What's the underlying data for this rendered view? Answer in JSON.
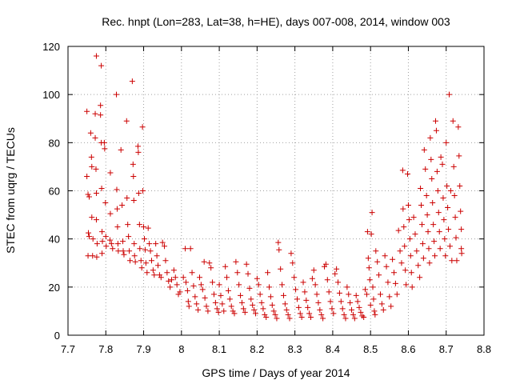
{
  "chart_data": {
    "type": "scatter",
    "title": "Rec. hnpt (Lon=283, Lat=38, h=HE), days 007-008, 2014, window 003",
    "xlabel": "GPS time / Days of year 2014",
    "ylabel": "STEC from uqrg / TECUs",
    "xlim": [
      7.7,
      8.8
    ],
    "ylim": [
      0,
      120
    ],
    "xticks": [
      "7.7",
      "7.8",
      "7.9",
      "8",
      "8.1",
      "8.2",
      "8.3",
      "8.4",
      "8.5",
      "8.6",
      "8.7",
      "8.8"
    ],
    "yticks": [
      "0",
      "20",
      "40",
      "60",
      "80",
      "100",
      "120"
    ],
    "grid": true,
    "marker": "plus",
    "color": "#cc0000",
    "points": [
      [
        7.75,
        93.0
      ],
      [
        7.75,
        66.0
      ],
      [
        7.753,
        58.5
      ],
      [
        7.756,
        57.5
      ],
      [
        7.754,
        42.5
      ],
      [
        7.756,
        41.0
      ],
      [
        7.753,
        33.0
      ],
      [
        7.76,
        84.0
      ],
      [
        7.762,
        74.0
      ],
      [
        7.763,
        70.0
      ],
      [
        7.763,
        49.0
      ],
      [
        7.766,
        40.0
      ],
      [
        7.765,
        33.0
      ],
      [
        7.775,
        116.0
      ],
      [
        7.772,
        92.0
      ],
      [
        7.772,
        82.0
      ],
      [
        7.774,
        69.0
      ],
      [
        7.775,
        59.0
      ],
      [
        7.775,
        48.0
      ],
      [
        7.777,
        38.0
      ],
      [
        7.776,
        32.5
      ],
      [
        7.788,
        112.0
      ],
      [
        7.786,
        95.5
      ],
      [
        7.786,
        91.5
      ],
      [
        7.788,
        80.0
      ],
      [
        7.789,
        61.0
      ],
      [
        7.79,
        43.0
      ],
      [
        7.791,
        39.0
      ],
      [
        7.79,
        34.0
      ],
      [
        7.796,
        80.0
      ],
      [
        7.797,
        77.5
      ],
      [
        7.799,
        55.0
      ],
      [
        7.8,
        41.0
      ],
      [
        7.801,
        37.0
      ],
      [
        7.812,
        67.5
      ],
      [
        7.812,
        50.5
      ],
      [
        7.811,
        39.5
      ],
      [
        7.815,
        38.0
      ],
      [
        7.818,
        36.0
      ],
      [
        7.828,
        100.0
      ],
      [
        7.829,
        60.5
      ],
      [
        7.83,
        52.5
      ],
      [
        7.831,
        45.0
      ],
      [
        7.832,
        38.0
      ],
      [
        7.833,
        35.0
      ],
      [
        7.84,
        77.0
      ],
      [
        7.843,
        54.0
      ],
      [
        7.845,
        39.0
      ],
      [
        7.846,
        35.0
      ],
      [
        7.848,
        33.5
      ],
      [
        7.855,
        89.0
      ],
      [
        7.856,
        57.0
      ],
      [
        7.858,
        46.0
      ],
      [
        7.86,
        41.0
      ],
      [
        7.862,
        35.0
      ],
      [
        7.864,
        31.0
      ],
      [
        7.87,
        105.5
      ],
      [
        7.872,
        71.0
      ],
      [
        7.873,
        66.0
      ],
      [
        7.874,
        56.0
      ],
      [
        7.875,
        38.0
      ],
      [
        7.876,
        33.0
      ],
      [
        7.878,
        30.5
      ],
      [
        7.885,
        78.5
      ],
      [
        7.886,
        76.0
      ],
      [
        7.887,
        59.0
      ],
      [
        7.889,
        46.0
      ],
      [
        7.89,
        36.0
      ],
      [
        7.893,
        31.0
      ],
      [
        7.895,
        28.0
      ],
      [
        7.897,
        86.5
      ],
      [
        7.898,
        60.0
      ],
      [
        7.9,
        45.0
      ],
      [
        7.902,
        40.0
      ],
      [
        7.904,
        35.5
      ],
      [
        7.906,
        30.0
      ],
      [
        7.909,
        26.0
      ],
      [
        7.912,
        44.5
      ],
      [
        7.915,
        38.0
      ],
      [
        7.918,
        35.0
      ],
      [
        7.921,
        31.0
      ],
      [
        7.925,
        27.0
      ],
      [
        7.928,
        25.0
      ],
      [
        7.932,
        38.0
      ],
      [
        7.935,
        33.0
      ],
      [
        7.938,
        29.0
      ],
      [
        7.942,
        25.0
      ],
      [
        7.946,
        24.0
      ],
      [
        7.95,
        38.5
      ],
      [
        7.955,
        37.0
      ],
      [
        7.958,
        31.0
      ],
      [
        7.962,
        26.0
      ],
      [
        7.966,
        22.5
      ],
      [
        7.97,
        20.0
      ],
      [
        7.974,
        23.0
      ],
      [
        7.98,
        27.0
      ],
      [
        7.984,
        24.0
      ],
      [
        7.988,
        21.0
      ],
      [
        7.992,
        17.0
      ],
      [
        7.996,
        18.0
      ],
      [
        8.005,
        24.0
      ],
      [
        8.01,
        36.0
      ],
      [
        8.012,
        22.0
      ],
      [
        8.016,
        18.5
      ],
      [
        8.018,
        14.0
      ],
      [
        8.02,
        12.0
      ],
      [
        8.024,
        36.0
      ],
      [
        8.028,
        26.0
      ],
      [
        8.032,
        20.5
      ],
      [
        8.036,
        16.0
      ],
      [
        8.04,
        13.0
      ],
      [
        8.044,
        10.5
      ],
      [
        8.048,
        24.0
      ],
      [
        8.052,
        21.0
      ],
      [
        8.056,
        19.0
      ],
      [
        8.06,
        30.5
      ],
      [
        8.062,
        15.5
      ],
      [
        8.066,
        12.0
      ],
      [
        8.07,
        10.0
      ],
      [
        8.074,
        30.0
      ],
      [
        8.078,
        28.0
      ],
      [
        8.082,
        22.0
      ],
      [
        8.086,
        17.0
      ],
      [
        8.09,
        13.5
      ],
      [
        8.094,
        11.0
      ],
      [
        8.098,
        9.5
      ],
      [
        8.1,
        21.0
      ],
      [
        8.104,
        16.5
      ],
      [
        8.108,
        13.0
      ],
      [
        8.112,
        10.0
      ],
      [
        8.116,
        28.5
      ],
      [
        8.12,
        24.0
      ],
      [
        8.124,
        18.5
      ],
      [
        8.128,
        15.0
      ],
      [
        8.132,
        12.0
      ],
      [
        8.136,
        10.0
      ],
      [
        8.14,
        9.0
      ],
      [
        8.144,
        30.5
      ],
      [
        8.148,
        26.0
      ],
      [
        8.152,
        21.0
      ],
      [
        8.156,
        16.5
      ],
      [
        8.16,
        13.5
      ],
      [
        8.164,
        11.0
      ],
      [
        8.168,
        9.5
      ],
      [
        8.172,
        29.5
      ],
      [
        8.176,
        25.5
      ],
      [
        8.18,
        19.5
      ],
      [
        8.184,
        15.0
      ],
      [
        8.188,
        12.5
      ],
      [
        8.192,
        10.5
      ],
      [
        8.196,
        9.0
      ],
      [
        8.2,
        23.5
      ],
      [
        8.204,
        21.0
      ],
      [
        8.208,
        17.0
      ],
      [
        8.212,
        13.5
      ],
      [
        8.216,
        11.0
      ],
      [
        8.22,
        8.5
      ],
      [
        8.224,
        7.5
      ],
      [
        8.228,
        26.0
      ],
      [
        8.232,
        20.0
      ],
      [
        8.236,
        16.0
      ],
      [
        8.24,
        12.5
      ],
      [
        8.244,
        10.0
      ],
      [
        8.248,
        8.5
      ],
      [
        8.252,
        7.0
      ],
      [
        8.256,
        38.5
      ],
      [
        8.258,
        35.5
      ],
      [
        8.262,
        27.5
      ],
      [
        8.266,
        21.0
      ],
      [
        8.27,
        16.5
      ],
      [
        8.274,
        13.0
      ],
      [
        8.278,
        10.5
      ],
      [
        8.282,
        8.5
      ],
      [
        8.286,
        7.0
      ],
      [
        8.29,
        34.0
      ],
      [
        8.294,
        30.0
      ],
      [
        8.298,
        24.0
      ],
      [
        8.302,
        19.0
      ],
      [
        8.306,
        15.0
      ],
      [
        8.31,
        11.5
      ],
      [
        8.314,
        9.0
      ],
      [
        8.318,
        7.5
      ],
      [
        8.322,
        22.0
      ],
      [
        8.326,
        18.0
      ],
      [
        8.33,
        14.5
      ],
      [
        8.334,
        11.5
      ],
      [
        8.338,
        9.0
      ],
      [
        8.342,
        7.5
      ],
      [
        8.346,
        23.5
      ],
      [
        8.35,
        27.0
      ],
      [
        8.354,
        21.0
      ],
      [
        8.358,
        17.0
      ],
      [
        8.362,
        13.5
      ],
      [
        8.366,
        10.5
      ],
      [
        8.37,
        8.5
      ],
      [
        8.374,
        7.0
      ],
      [
        8.378,
        28.5
      ],
      [
        8.382,
        29.5
      ],
      [
        8.386,
        23.0
      ],
      [
        8.39,
        18.0
      ],
      [
        8.394,
        14.0
      ],
      [
        8.398,
        11.0
      ],
      [
        8.402,
        9.0
      ],
      [
        8.406,
        25.5
      ],
      [
        8.41,
        27.5
      ],
      [
        8.414,
        22.0
      ],
      [
        8.418,
        17.5
      ],
      [
        8.422,
        14.0
      ],
      [
        8.426,
        11.0
      ],
      [
        8.43,
        8.5
      ],
      [
        8.434,
        7.0
      ],
      [
        8.438,
        20.0
      ],
      [
        8.442,
        17.0
      ],
      [
        8.446,
        13.5
      ],
      [
        8.45,
        10.5
      ],
      [
        8.454,
        8.5
      ],
      [
        8.458,
        7.0
      ],
      [
        8.462,
        16.5
      ],
      [
        8.466,
        14.0
      ],
      [
        8.47,
        11.5
      ],
      [
        8.474,
        9.5
      ],
      [
        8.478,
        8.0
      ],
      [
        8.482,
        7.5
      ],
      [
        8.486,
        19.0
      ],
      [
        8.49,
        17.0
      ],
      [
        8.492,
        43.0
      ],
      [
        8.494,
        32.0
      ],
      [
        8.496,
        28.0
      ],
      [
        8.498,
        23.0
      ],
      [
        8.5,
        12.5
      ],
      [
        8.502,
        42.0
      ],
      [
        8.504,
        51.0
      ],
      [
        8.506,
        20.0
      ],
      [
        8.508,
        15.0
      ],
      [
        8.51,
        10.0
      ],
      [
        8.512,
        8.5
      ],
      [
        8.514,
        35.0
      ],
      [
        8.518,
        30.5
      ],
      [
        8.522,
        25.0
      ],
      [
        8.526,
        17.0
      ],
      [
        8.53,
        13.0
      ],
      [
        8.534,
        10.5
      ],
      [
        8.538,
        33.0
      ],
      [
        8.542,
        28.5
      ],
      [
        8.546,
        22.0
      ],
      [
        8.55,
        16.0
      ],
      [
        8.554,
        12.0
      ],
      [
        8.558,
        31.5
      ],
      [
        8.562,
        26.0
      ],
      [
        8.566,
        21.5
      ],
      [
        8.57,
        17.0
      ],
      [
        8.574,
        43.5
      ],
      [
        8.578,
        35.0
      ],
      [
        8.582,
        30.0
      ],
      [
        8.585,
        68.5
      ],
      [
        8.586,
        52.5
      ],
      [
        8.588,
        45.0
      ],
      [
        8.59,
        37.0
      ],
      [
        8.592,
        27.0
      ],
      [
        8.594,
        21.0
      ],
      [
        8.598,
        67.0
      ],
      [
        8.6,
        54.0
      ],
      [
        8.602,
        48.0
      ],
      [
        8.604,
        40.0
      ],
      [
        8.606,
        33.0
      ],
      [
        8.608,
        26.0
      ],
      [
        8.61,
        20.0
      ],
      [
        8.614,
        49.0
      ],
      [
        8.618,
        42.0
      ],
      [
        8.622,
        35.0
      ],
      [
        8.626,
        29.0
      ],
      [
        8.63,
        24.0
      ],
      [
        8.632,
        61.0
      ],
      [
        8.634,
        54.0
      ],
      [
        8.636,
        46.0
      ],
      [
        8.638,
        38.0
      ],
      [
        8.64,
        32.0
      ],
      [
        8.642,
        77.0
      ],
      [
        8.645,
        69.0
      ],
      [
        8.648,
        58.0
      ],
      [
        8.65,
        50.0
      ],
      [
        8.652,
        43.0
      ],
      [
        8.654,
        36.0
      ],
      [
        8.656,
        30.0
      ],
      [
        8.658,
        82.0
      ],
      [
        8.66,
        73.0
      ],
      [
        8.662,
        65.0
      ],
      [
        8.664,
        55.0
      ],
      [
        8.666,
        46.0
      ],
      [
        8.668,
        39.0
      ],
      [
        8.67,
        33.0
      ],
      [
        8.672,
        89.0
      ],
      [
        8.674,
        85.0
      ],
      [
        8.676,
        68.0
      ],
      [
        8.678,
        60.0
      ],
      [
        8.68,
        51.0
      ],
      [
        8.682,
        43.0
      ],
      [
        8.684,
        36.0
      ],
      [
        8.686,
        74.0
      ],
      [
        8.69,
        71.0
      ],
      [
        8.692,
        57.0
      ],
      [
        8.694,
        48.0
      ],
      [
        8.696,
        40.0
      ],
      [
        8.698,
        33.0
      ],
      [
        8.7,
        80.0
      ],
      [
        8.702,
        62.0
      ],
      [
        8.704,
        53.0
      ],
      [
        8.706,
        44.0
      ],
      [
        8.708,
        100.0
      ],
      [
        8.71,
        37.0
      ],
      [
        8.712,
        60.0
      ],
      [
        8.715,
        31.0
      ],
      [
        8.718,
        89.0
      ],
      [
        8.72,
        70.0
      ],
      [
        8.722,
        58.0
      ],
      [
        8.724,
        49.0
      ],
      [
        8.726,
        40.5
      ],
      [
        8.728,
        31.0
      ],
      [
        8.732,
        86.5
      ],
      [
        8.734,
        74.5
      ],
      [
        8.736,
        62.0
      ],
      [
        8.738,
        51.5
      ],
      [
        8.74,
        44.0
      ],
      [
        8.74,
        36.0
      ],
      [
        8.741,
        34.0
      ]
    ]
  }
}
